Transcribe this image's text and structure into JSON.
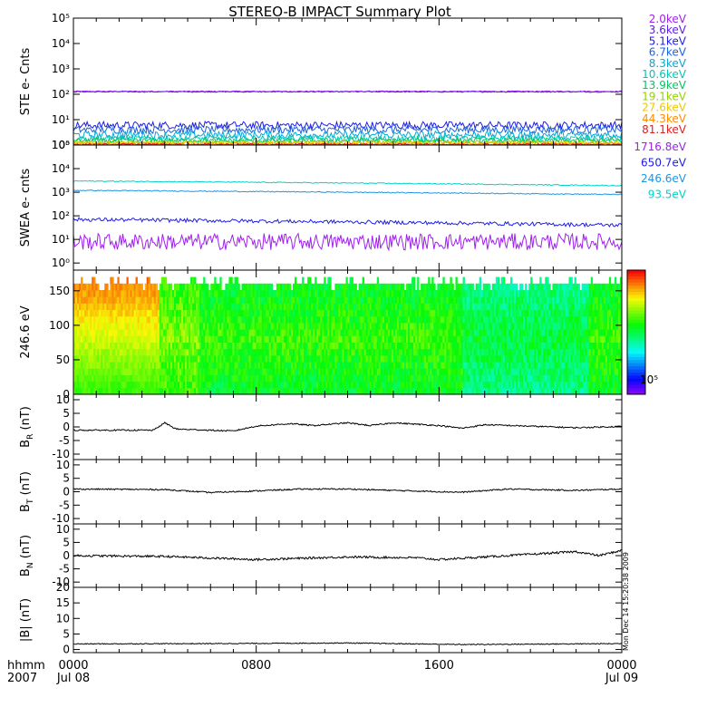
{
  "title": "STEREO-B IMPACT Summary Plot",
  "stamp": "Mon Dec 14 15:20:38 2009",
  "time_axis": {
    "row1_label": "hhmm",
    "row2_label": "2007",
    "ticks": [
      {
        "t": 0,
        "time": "0000",
        "date": "Jul 08"
      },
      {
        "t": 8,
        "time": "0800",
        "date": ""
      },
      {
        "t": 16,
        "time": "1600",
        "date": ""
      },
      {
        "t": 24,
        "time": "0000",
        "date": "Jul 09"
      }
    ]
  },
  "chart_data": [
    {
      "id": "ste",
      "type": "line",
      "ylabel": "STE e- Cnts",
      "yscale": "log",
      "ylim": [
        1,
        100000
      ],
      "yticks": [
        1,
        10,
        100,
        1000,
        10000,
        100000
      ],
      "yticklabels": [
        "10⁰",
        "10¹",
        "10²",
        "10³",
        "10⁴",
        "10⁵"
      ],
      "series": [
        {
          "name": "2.0keV",
          "color": "#a020f0",
          "level": 130,
          "noise": 0.02
        },
        {
          "name": "3.6keV",
          "color": "#5a20e0",
          "level": 125,
          "noise": 0.02
        },
        {
          "name": "5.1keV",
          "color": "#1e1ee6",
          "level": 6,
          "noise": 0.15
        },
        {
          "name": "6.7keV",
          "color": "#1e64dc",
          "level": 4,
          "noise": 0.15
        },
        {
          "name": "8.3keV",
          "color": "#00aadc",
          "level": 2.5,
          "noise": 0.15
        },
        {
          "name": "10.6keV",
          "color": "#00c8b4",
          "level": 1.8,
          "noise": 0.12
        },
        {
          "name": "13.9keV",
          "color": "#00c864",
          "level": 1.5,
          "noise": 0.1
        },
        {
          "name": "19.1keV",
          "color": "#96d200",
          "level": 1.3,
          "noise": 0.08
        },
        {
          "name": "27.6keV",
          "color": "#f0c800",
          "level": 1.2,
          "noise": 0.06
        },
        {
          "name": "44.3keV",
          "color": "#ff8c00",
          "level": 1.1,
          "noise": 0.05
        },
        {
          "name": "81.1keV",
          "color": "#e02020",
          "level": 1.05,
          "noise": 0.04
        }
      ]
    },
    {
      "id": "swea",
      "type": "line",
      "ylabel": "SWEA e- cnts",
      "yscale": "log",
      "ylim": [
        0.5,
        100000
      ],
      "yticks": [
        1,
        10,
        100,
        1000,
        10000,
        100000
      ],
      "yticklabels": [
        "10⁰",
        "10¹",
        "10²",
        "10³",
        "10⁴",
        "10⁵"
      ],
      "series": [
        {
          "name": "1716.8eV",
          "color": "#a020f0",
          "level": 8,
          "noise": 0.35
        },
        {
          "name": "650.7eV",
          "color": "#1e1ee6",
          "level": 70,
          "noise": 0.08,
          "end": 40
        },
        {
          "name": "246.6eV",
          "color": "#1e96e6",
          "level": 1200,
          "noise": 0.02,
          "end": 800
        },
        {
          "name": "93.5eV",
          "color": "#00d2c8",
          "level": 3000,
          "noise": 0.02,
          "end": 1900
        }
      ]
    },
    {
      "id": "pad",
      "type": "heatmap",
      "ylabel": "246.6 eV",
      "ylim": [
        0,
        180
      ],
      "yticks": [
        0,
        50,
        100,
        150
      ],
      "yticklabels": [
        "0",
        "50",
        "100",
        "150"
      ],
      "colorbar_label": "10⁵"
    },
    {
      "id": "br",
      "type": "line",
      "ylabel": "B",
      "ysub": "R",
      "yunit": " (nT)",
      "ylim": [
        -12,
        12
      ],
      "yticks": [
        -10,
        -5,
        0,
        5,
        10
      ],
      "yticklabels": [
        "-10",
        "-5",
        "0",
        "5",
        "10"
      ],
      "knots": [
        [
          0,
          -1.2
        ],
        [
          3.5,
          -1.2
        ],
        [
          4,
          1.5
        ],
        [
          4.5,
          -0.8
        ],
        [
          7,
          -1.5
        ],
        [
          8,
          0.3
        ],
        [
          9.5,
          1.2
        ],
        [
          10.5,
          0.5
        ],
        [
          12,
          1.5
        ],
        [
          13,
          0.5
        ],
        [
          14,
          1.5
        ],
        [
          16,
          0.5
        ],
        [
          17,
          -0.5
        ],
        [
          18,
          0.8
        ],
        [
          21,
          0
        ],
        [
          22,
          -0.3
        ],
        [
          24,
          0.2
        ]
      ],
      "noise": 0.25
    },
    {
      "id": "bt",
      "type": "line",
      "ylabel": "B",
      "ysub": "T",
      "yunit": " (nT)",
      "ylim": [
        -12,
        12
      ],
      "yticks": [
        -10,
        -5,
        0,
        5,
        10
      ],
      "yticklabels": [
        "-10",
        "-5",
        "0",
        "5",
        "10"
      ],
      "knots": [
        [
          0,
          1
        ],
        [
          4,
          0.8
        ],
        [
          6,
          -0.3
        ],
        [
          8,
          0.3
        ],
        [
          10,
          1
        ],
        [
          12,
          1
        ],
        [
          14,
          0.5
        ],
        [
          17,
          -0.2
        ],
        [
          19,
          1
        ],
        [
          22,
          0.5
        ],
        [
          24,
          1
        ]
      ],
      "noise": 0.25
    },
    {
      "id": "bn",
      "type": "line",
      "ylabel": "B",
      "ysub": "N",
      "yunit": " (nT)",
      "ylim": [
        -12,
        12
      ],
      "yticks": [
        -10,
        -5,
        0,
        5,
        10
      ],
      "yticklabels": [
        "-10",
        "-5",
        "0",
        "5",
        "10"
      ],
      "knots": [
        [
          0,
          0
        ],
        [
          4,
          -0.3
        ],
        [
          8,
          -1.5
        ],
        [
          12,
          -0.5
        ],
        [
          15,
          -0.8
        ],
        [
          16,
          -1.5
        ],
        [
          18,
          -0.5
        ],
        [
          20,
          0.5
        ],
        [
          22,
          1.5
        ],
        [
          23,
          0
        ],
        [
          24,
          2
        ]
      ],
      "noise": 0.4
    },
    {
      "id": "bmag",
      "type": "line",
      "ylabel": "|B| (nT)",
      "ylim": [
        -1,
        20
      ],
      "yticks": [
        0,
        5,
        10,
        15,
        20
      ],
      "yticklabels": [
        "0",
        "5",
        "10",
        "15",
        "20"
      ],
      "knots": [
        [
          0,
          1.8
        ],
        [
          6,
          1.9
        ],
        [
          12,
          2.1
        ],
        [
          17,
          1.6
        ],
        [
          24,
          1.9
        ]
      ],
      "noise": 0.15
    }
  ]
}
